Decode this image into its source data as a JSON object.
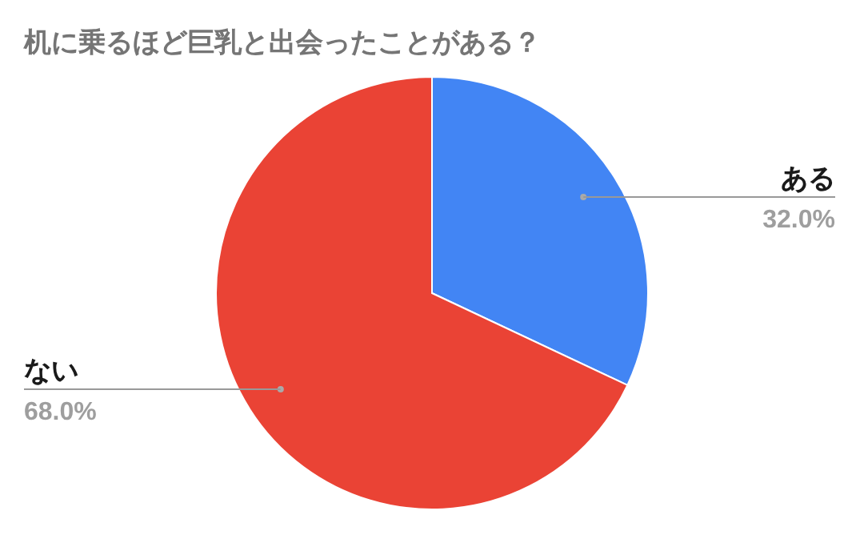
{
  "chart_data": {
    "type": "pie",
    "title": "机に乗るほど巨乳と出会ったことがある？",
    "categories": [
      "ある",
      "ない"
    ],
    "values": [
      32,
      68
    ],
    "colors": [
      "#4285f4",
      "#ea4335"
    ],
    "value_labels": [
      "32.0%",
      "68.0%"
    ]
  }
}
